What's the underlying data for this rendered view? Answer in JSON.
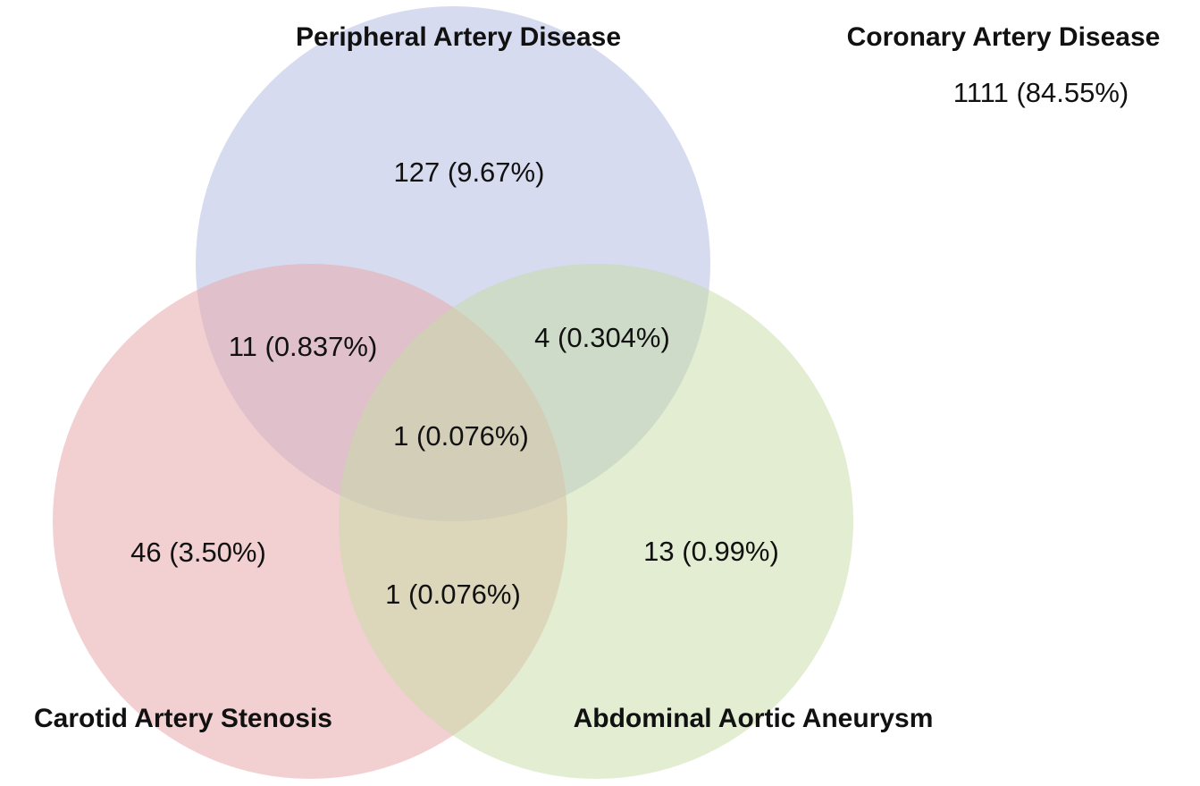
{
  "sets": [
    {
      "label": "Peripheral Artery Disease"
    },
    {
      "label": "Carotid Artery Stenosis"
    },
    {
      "label": "Abdominal Aortic Aneurysm"
    },
    {
      "label": "Coronary Artery Disease",
      "count": "1111 (84.55%)"
    }
  ],
  "regions": [
    {
      "label": "127 (9.67%)"
    },
    {
      "label": "11 (0.837%)"
    },
    {
      "label": "4 (0.304%)"
    },
    {
      "label": "1 (0.076%)"
    },
    {
      "label": "46 (3.50%)"
    },
    {
      "label": "1 (0.076%)"
    },
    {
      "label": "13 (0.99%)"
    }
  ]
}
